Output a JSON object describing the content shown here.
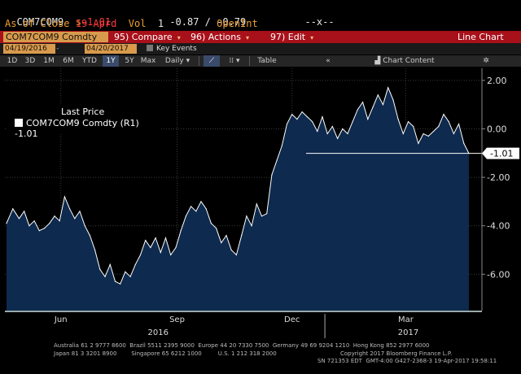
{
  "header": {
    "ticker": "COM7COM9",
    "s_label": "s",
    "s_value": "-1.01",
    "change": "-0.87 / -0.79",
    "window_ctrl": "--x--",
    "as_of_label": "As of Close",
    "as_of_date": "19 Aprd",
    "vol_label": "Vol",
    "vol_value": "1",
    "open_int_label": "OpenInt",
    "open_int_value": "-"
  },
  "command_bar": {
    "security": "COM7COM9 Comdty",
    "compare_key": "95)",
    "compare": "Compare",
    "actions_key": "96)",
    "actions": "Actions",
    "edit_key": "97)",
    "edit": "Edit",
    "chart_type": "Line Chart"
  },
  "date_range": {
    "start": "04/19/2016",
    "end": "04/20/2017",
    "key_events": "Key Events"
  },
  "toolbar": {
    "periods": [
      "1D",
      "3D",
      "1M",
      "6M",
      "YTD",
      "1Y",
      "5Y",
      "Max"
    ],
    "selected_period": "1Y",
    "frequency": "Daily",
    "table": "Table",
    "chart_content": "Chart Content"
  },
  "legend": {
    "title": "Last Price",
    "series": "COM7COM9 Comdty  (R1) -1.01"
  },
  "colors": {
    "area_fill": "#0e2a4e",
    "line": "#ffffff",
    "command_bar": "#a8101a",
    "accent": "#f0a030"
  },
  "chart_data": {
    "type": "area",
    "y_axis": "right",
    "ylim": [
      -7.5,
      2.5
    ],
    "y_ticks": [
      2.0,
      0.0,
      -2.0,
      -4.0,
      -6.0
    ],
    "y_tick_labels": [
      "2.00",
      "0.00",
      "-2.00",
      "-4.00",
      "-6.00"
    ],
    "x_tick_labels": [
      "Jun",
      "Sep",
      "Dec",
      "Mar"
    ],
    "x_year_labels": [
      "2016",
      "2017"
    ],
    "last_value": -1.01,
    "last_value_label": "-1.01",
    "grid": true,
    "series": [
      {
        "name": "COM7COM9 Comdty",
        "x_days": [
          0,
          5,
          10,
          14,
          18,
          22,
          26,
          30,
          34,
          38,
          42,
          46,
          50,
          54,
          58,
          62,
          66,
          70,
          74,
          78,
          82,
          86,
          90,
          94,
          98,
          102,
          106,
          110,
          114,
          118,
          122,
          126,
          130,
          134,
          138,
          142,
          146,
          150,
          154,
          158,
          162,
          166,
          170,
          174,
          178,
          182,
          186,
          190,
          194,
          198,
          202,
          206,
          210,
          214,
          218,
          222,
          226,
          230,
          234,
          238,
          242,
          246,
          250,
          254,
          258,
          262,
          266,
          270,
          274,
          278,
          282,
          286,
          290,
          294,
          298,
          302,
          306,
          310,
          314,
          318,
          322,
          326,
          330,
          334,
          338,
          342,
          346,
          350,
          354,
          358,
          362,
          366
        ],
        "values": [
          -3.9,
          -3.3,
          -3.7,
          -3.4,
          -4.0,
          -3.8,
          -4.2,
          -4.1,
          -3.9,
          -3.6,
          -3.8,
          -2.8,
          -3.3,
          -3.7,
          -3.4,
          -4.0,
          -4.4,
          -5.0,
          -5.8,
          -6.1,
          -5.6,
          -6.3,
          -6.4,
          -5.9,
          -6.1,
          -5.6,
          -5.2,
          -4.6,
          -4.9,
          -4.5,
          -5.1,
          -4.5,
          -5.2,
          -4.9,
          -4.2,
          -3.6,
          -3.2,
          -3.4,
          -3.0,
          -3.3,
          -3.9,
          -4.1,
          -4.7,
          -4.4,
          -5.0,
          -5.2,
          -4.4,
          -3.6,
          -4.0,
          -3.1,
          -3.6,
          -3.5,
          -1.9,
          -1.3,
          -0.7,
          0.2,
          0.6,
          0.4,
          0.7,
          0.5,
          0.3,
          -0.1,
          0.5,
          -0.2,
          0.1,
          -0.4,
          0.0,
          -0.2,
          0.3,
          0.8,
          1.1,
          0.4,
          0.9,
          1.4,
          1.0,
          1.7,
          1.2,
          0.4,
          -0.2,
          0.3,
          0.1,
          -0.6,
          -0.2,
          -0.3,
          -0.1,
          0.1,
          0.6,
          0.3,
          -0.2,
          0.2,
          -0.6,
          -1.01
        ]
      }
    ]
  },
  "footer": {
    "line1": "Australia 61 2 9777 8600  Brazil 5511 2395 9000  Europe 44 20 7330 7500  Germany 49 69 9204 1210  Hong Kong 852 2977 6000",
    "line2": "Japan 81 3 3201 8900        Singapore 65 6212 1000         U.S. 1 212 318 2000",
    "line3": "Copyright 2017 Bloomberg Finance L.P.",
    "line4": "SN 721353 EDT  GMT-4:00 G427-2368-3 19-Apr-2017 19:58:11"
  }
}
